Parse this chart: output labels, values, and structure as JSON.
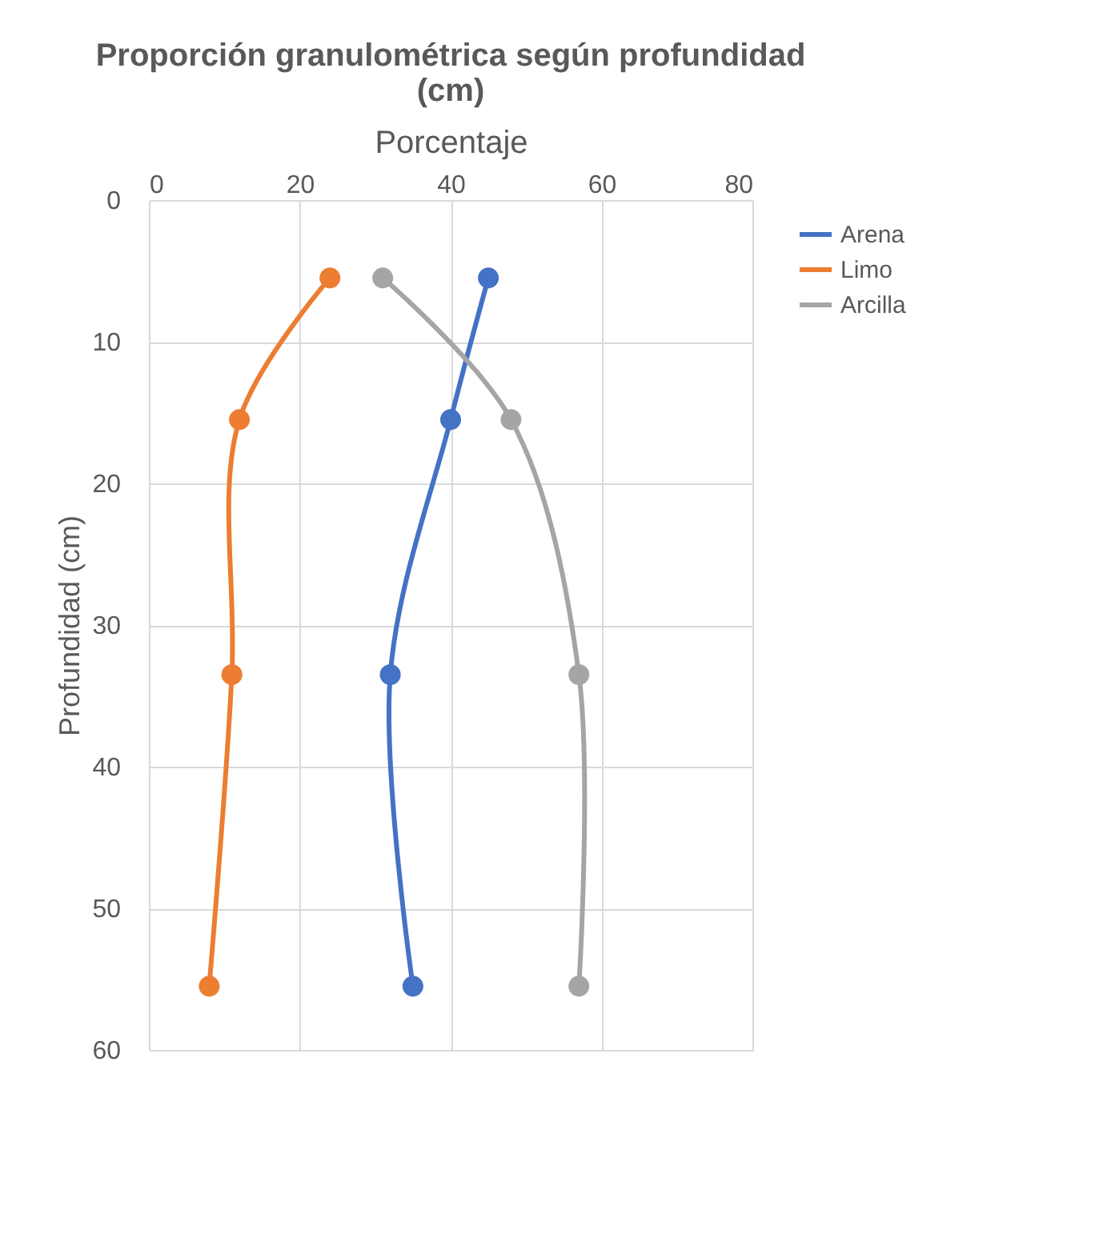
{
  "chart_data": {
    "type": "line",
    "title": [
      "Proporción granulométrica según profundidad",
      "(cm)"
    ],
    "xlabel": "Porcentaje",
    "ylabel": "Profundidad (cm)",
    "xlim": [
      0,
      80
    ],
    "xticks": [
      0,
      20,
      40,
      60,
      80
    ],
    "ylim": [
      60,
      0
    ],
    "yticks": [
      0,
      10,
      20,
      30,
      40,
      50,
      60
    ],
    "grid": true,
    "legend": "right",
    "marker": "circle",
    "line_style": "solid",
    "series": [
      {
        "name": "Arena",
        "color": "#4472c4",
        "x": [
          45,
          40,
          32,
          35
        ],
        "values": [
          5.5,
          15.5,
          33.5,
          55.5
        ]
      },
      {
        "name": "Limo",
        "color": "#ed7d31",
        "x": [
          24,
          12,
          11,
          8
        ],
        "values": [
          5.5,
          15.5,
          33.5,
          55.5
        ]
      },
      {
        "name": "Arcilla",
        "color": "#a5a5a5",
        "x": [
          31,
          48,
          57,
          57
        ],
        "values": [
          5.5,
          15.5,
          33.5,
          55.5
        ]
      }
    ]
  }
}
